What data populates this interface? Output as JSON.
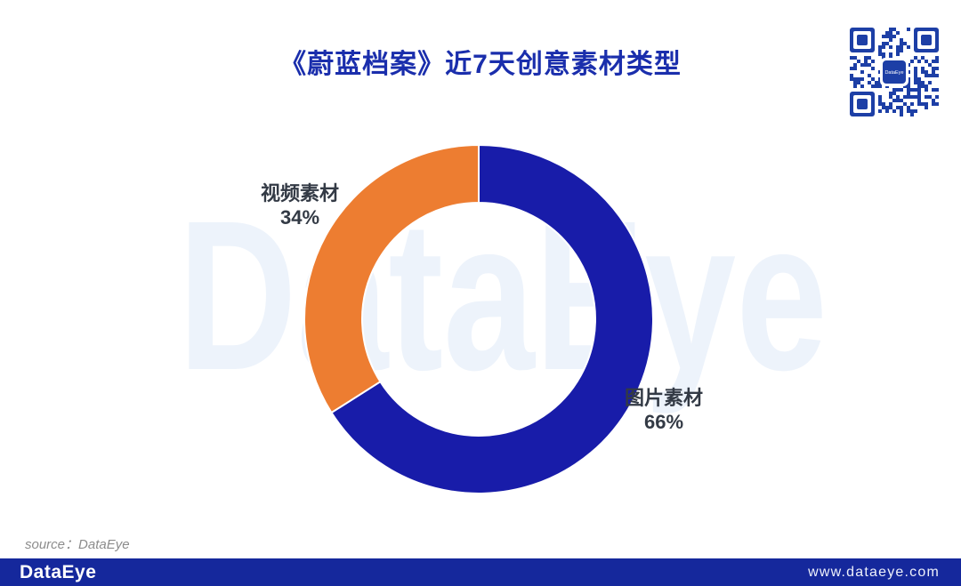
{
  "title": "《蔚蓝档案》近7天创意素材类型",
  "source_note": "source：DataEye",
  "watermark_text": "DataEye",
  "qr": {
    "label": "DataEye",
    "color": "#1D3FA6"
  },
  "footer": {
    "logo": "DataEye",
    "url": "www.dataeye.com"
  },
  "colors": {
    "title_blue": "#1A2EAC",
    "donut_blue": "#181CA9",
    "donut_orange": "#ED7D31",
    "watermark_blue": "#EDF3FB",
    "footer_bg": "#15289C",
    "qr_blue": "#1D3FA6",
    "label_text": "#333A45",
    "source_gray": "#8C8C8C"
  },
  "chart_data": {
    "type": "pie",
    "subtype": "donut",
    "title": "《蔚蓝档案》近7天创意素材类型",
    "categories": [
      "图片素材",
      "视频素材"
    ],
    "values": [
      66,
      34
    ],
    "unit": "%",
    "colors": [
      "#181CA9",
      "#ED7D31"
    ],
    "start_angle": "top",
    "direction": "clockwise",
    "inner_radius_ratio": 0.67,
    "segment_gap_stroke": "#ffffff",
    "legend_position": "none",
    "labels": [
      {
        "name": "图片素材",
        "pct": "66%",
        "position": "right-of-ring"
      },
      {
        "name": "视频素材",
        "pct": "34%",
        "position": "left-of-ring"
      }
    ]
  }
}
